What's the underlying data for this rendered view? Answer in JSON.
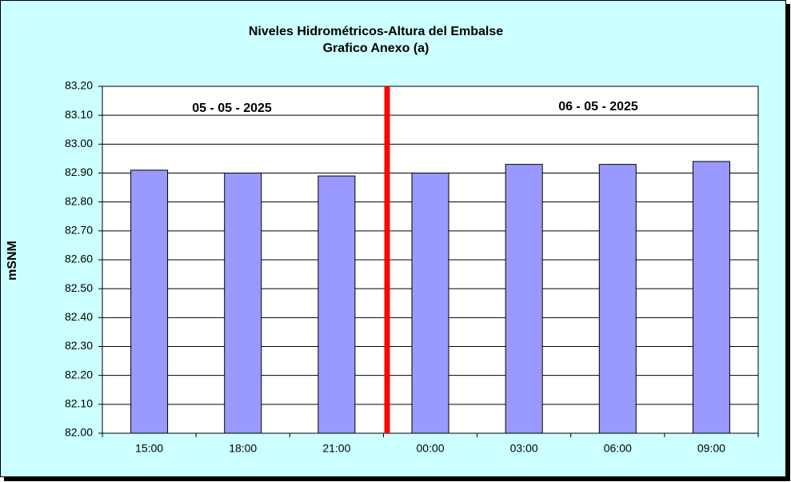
{
  "chart_data": {
    "type": "bar",
    "title": "Niveles Hidrométricos-Altura del Embalse",
    "subtitle": "Grafico Anexo (a)",
    "y_label": "mSNM",
    "annotations": [
      "05 - 05 - 2025",
      "06 - 05 - 2025"
    ],
    "categories": [
      "15:00",
      "18:00",
      "21:00",
      "00:00",
      "03:00",
      "06:00",
      "09:00"
    ],
    "values": [
      82.91,
      82.9,
      82.89,
      82.9,
      82.93,
      82.93,
      82.94
    ],
    "color": "#9999ff",
    "ylim": [
      82.0,
      83.2
    ],
    "yticks": [
      {
        "value": 82.0,
        "label": "82.00"
      },
      {
        "value": 82.1,
        "label": "82.10"
      },
      {
        "value": 82.2,
        "label": "82.20"
      },
      {
        "value": 82.3,
        "label": "82.30"
      },
      {
        "value": 82.4,
        "label": "82.40"
      },
      {
        "value": 82.5,
        "label": "82.50"
      },
      {
        "value": 82.6,
        "label": "82.60"
      },
      {
        "value": 82.7,
        "label": "82.70"
      },
      {
        "value": 82.8,
        "label": "82.80"
      },
      {
        "value": 82.9,
        "label": "82.90"
      },
      {
        "value": 83.0,
        "label": "83.00"
      },
      {
        "value": 83.1,
        "label": "83.10"
      },
      {
        "value": 83.2,
        "label": "83.20"
      }
    ],
    "grid": true
  }
}
